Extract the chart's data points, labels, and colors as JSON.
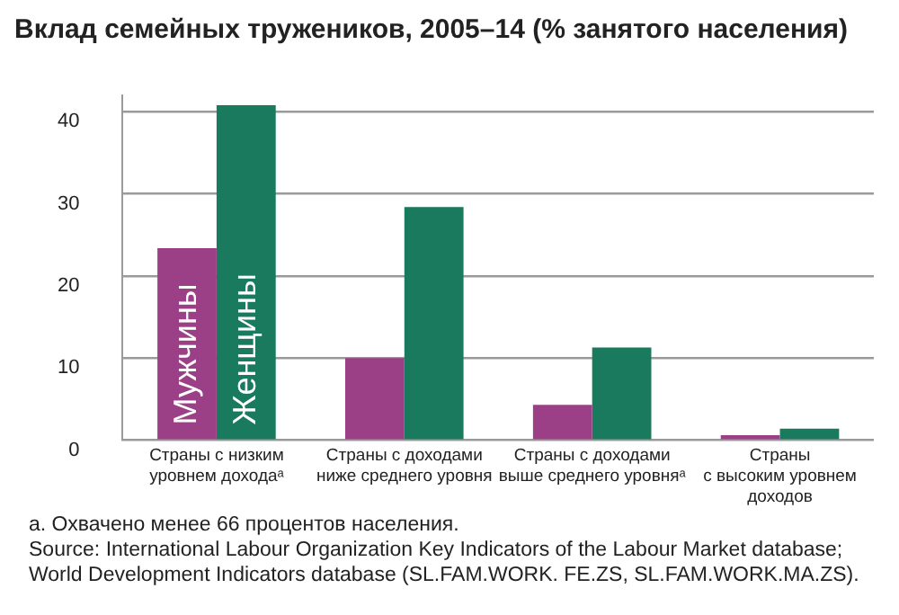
{
  "chart_data": {
    "type": "bar",
    "title": "Вклад семейных тружеников, 2005–14 (% занятого населения)",
    "categories": [
      "Страны с низким\nуровнем доходаᵃ",
      "Страны с доходами\nниже среднего уровня",
      "Страны с доходами\nвыше среднего уровняᵃ",
      "Страны\nс высоким уровнем\nдоходов"
    ],
    "series": [
      {
        "name": "Мужчины",
        "color": "#9b3f86",
        "values": [
          23.4,
          10.0,
          4.3,
          0.6
        ]
      },
      {
        "name": "Женщины",
        "color": "#1a7a5e",
        "values": [
          40.8,
          28.4,
          11.3,
          1.4
        ]
      }
    ],
    "ylim": [
      0,
      42
    ],
    "yticks": [
      0,
      10,
      20,
      30,
      40
    ],
    "grid": "y",
    "legend": false,
    "annotations": [
      "a. Охвачено менее 66 процентов населения.",
      "Source: International Labour Organization Key Indicators of the Labour Market database; World Development Indicators database (SL.FAM.WORK. FE.ZS, SL.FAM.WORK.MA.ZS)."
    ]
  }
}
